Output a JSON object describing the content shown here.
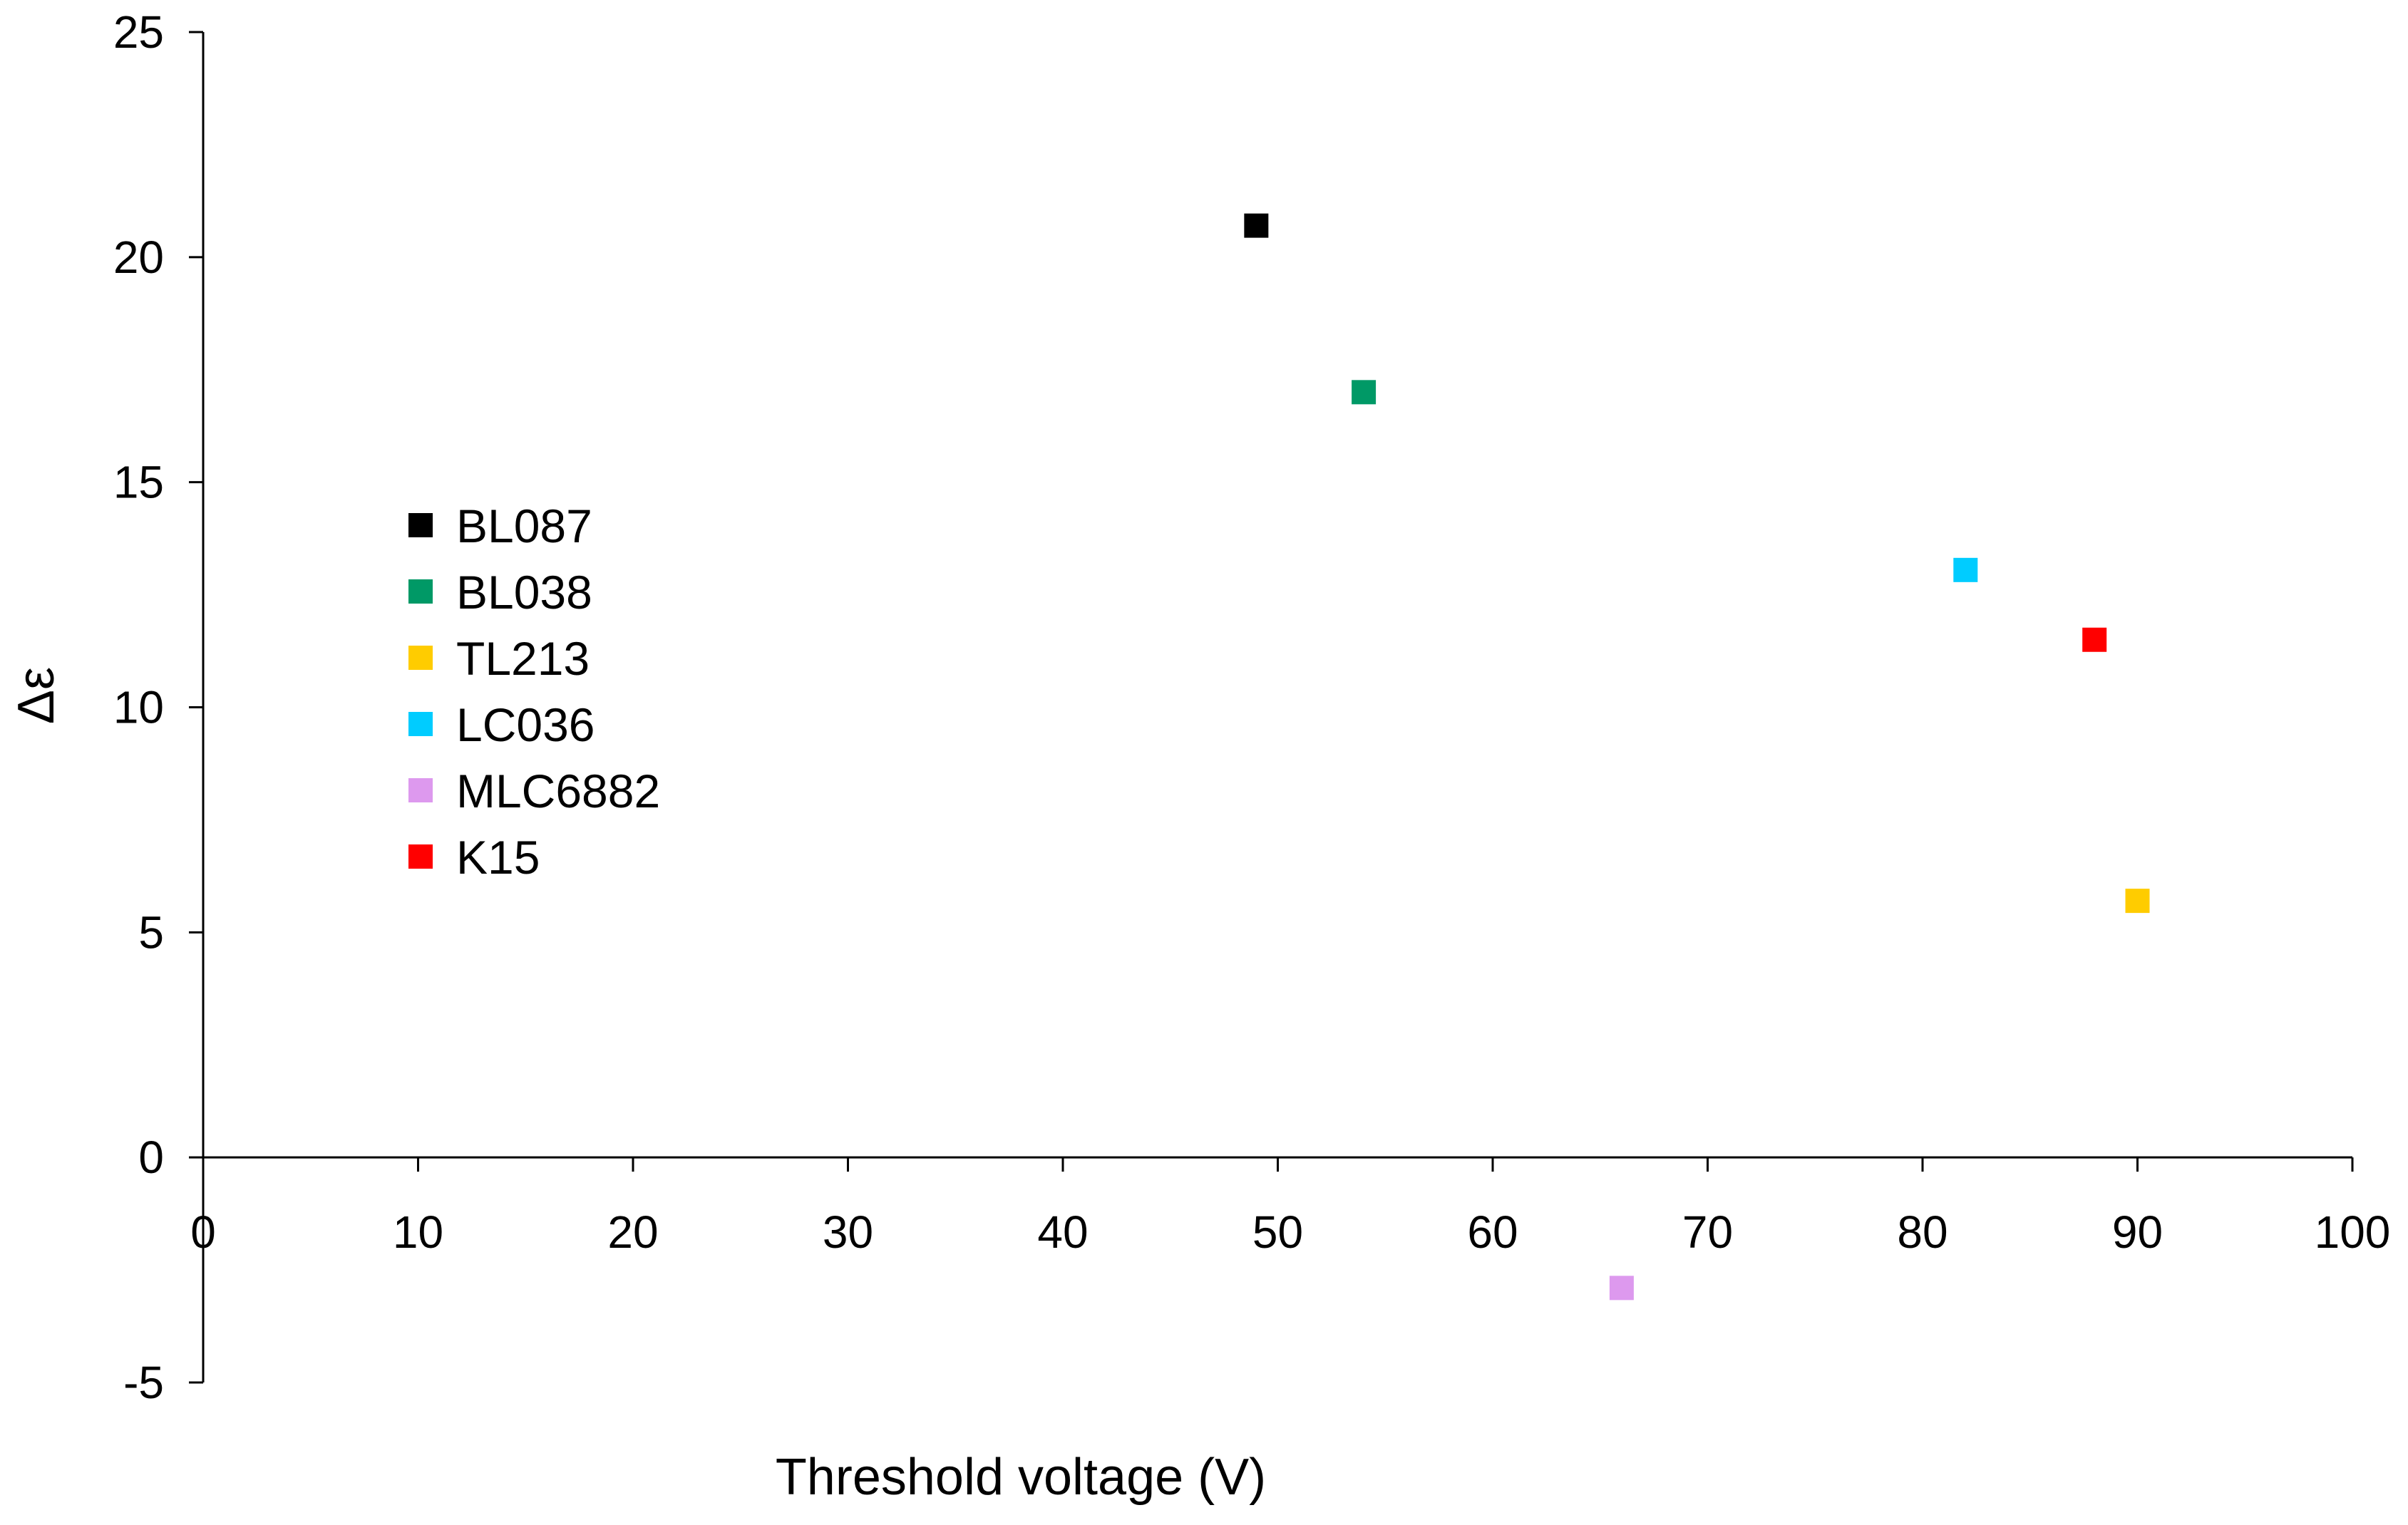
{
  "chart_data": {
    "type": "scatter",
    "title": "",
    "xlabel": "Threshold voltage (V)",
    "ylabel": "Δε",
    "xlim": [
      0,
      100
    ],
    "ylim": [
      -5,
      25
    ],
    "x_ticks": [
      0,
      10,
      20,
      30,
      40,
      50,
      60,
      70,
      80,
      90,
      100
    ],
    "y_ticks": [
      -5,
      0,
      5,
      10,
      15,
      20,
      25
    ],
    "grid": false,
    "legend_position": "left",
    "series": [
      {
        "name": "BL087",
        "color": "#000000",
        "x": 49,
        "y": 20.7
      },
      {
        "name": "BL038",
        "color": "#009966",
        "x": 54,
        "y": 17.0
      },
      {
        "name": "TL213",
        "color": "#FFCC00",
        "x": 90,
        "y": 5.7
      },
      {
        "name": "LC036",
        "color": "#00CCFF",
        "x": 82,
        "y": 13.05
      },
      {
        "name": "MLC6882",
        "color": "#DD99EE",
        "x": 66,
        "y": -2.9
      },
      {
        "name": "K15",
        "color": "#FF0000",
        "x": 88,
        "y": 11.5
      }
    ]
  }
}
